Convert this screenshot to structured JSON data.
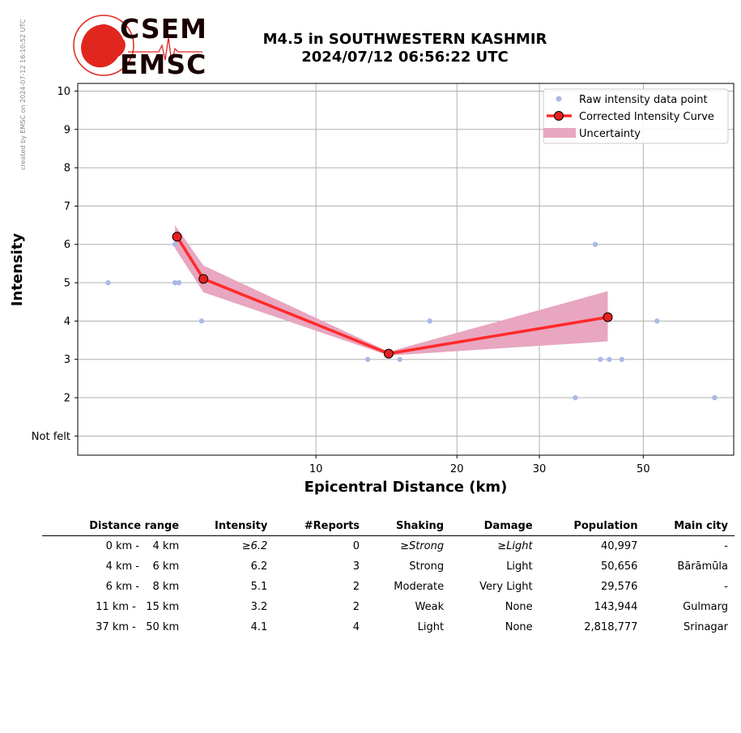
{
  "credit": "created by EMSC on 2024-07-12 16:10:52 UTC",
  "logo": {
    "top_word": "CSEM",
    "bottom_word": "EMSC"
  },
  "title": {
    "line1": "M4.5 in SOUTHWESTERN KASHMIR",
    "line2": "2024/07/12 06:56:22 UTC"
  },
  "colors": {
    "raw": "#aab9e6",
    "curve": "#ff2a2a",
    "marker": "#e62020",
    "uncertainty": "#e8a6c0",
    "grid": "#b0b0b0"
  },
  "chart_data": {
    "type": "line",
    "xlabel": "Epicentral Distance (km)",
    "ylabel": "Intensity",
    "x_scale": "log",
    "xlim": [
      3.1,
      78
    ],
    "ylim": [
      0.5,
      10.2
    ],
    "xticks": [
      10,
      20,
      30,
      50
    ],
    "yticks": [
      {
        "value": 1,
        "label": "Not felt"
      },
      {
        "value": 2,
        "label": "2"
      },
      {
        "value": 3,
        "label": "3"
      },
      {
        "value": 4,
        "label": "4"
      },
      {
        "value": 5,
        "label": "5"
      },
      {
        "value": 6,
        "label": "6"
      },
      {
        "value": 7,
        "label": "7"
      },
      {
        "value": 8,
        "label": "8"
      },
      {
        "value": 9,
        "label": "9"
      },
      {
        "value": 10,
        "label": "10"
      }
    ],
    "grid": true,
    "legend_position": "top-right",
    "legend": [
      "Raw intensity data point",
      "Corrected Intensity Curve",
      "Uncertainty"
    ],
    "raw_points": [
      {
        "x": 3.6,
        "y": 5
      },
      {
        "x": 5.0,
        "y": 6
      },
      {
        "x": 5.0,
        "y": 5
      },
      {
        "x": 5.1,
        "y": 5
      },
      {
        "x": 5.7,
        "y": 4
      },
      {
        "x": 12.9,
        "y": 3
      },
      {
        "x": 15.1,
        "y": 3
      },
      {
        "x": 17.5,
        "y": 4
      },
      {
        "x": 35.8,
        "y": 2
      },
      {
        "x": 39.5,
        "y": 6
      },
      {
        "x": 40.5,
        "y": 3
      },
      {
        "x": 42.3,
        "y": 3
      },
      {
        "x": 45.0,
        "y": 3
      },
      {
        "x": 53.5,
        "y": 4
      },
      {
        "x": 71.0,
        "y": 2
      }
    ],
    "curve": [
      {
        "x": 5.05,
        "y": 6.2
      },
      {
        "x": 5.75,
        "y": 5.1
      },
      {
        "x": 14.3,
        "y": 3.15
      },
      {
        "x": 42.0,
        "y": 4.1
      }
    ],
    "uncertainty": [
      {
        "x": 5.0,
        "low": 5.9,
        "high": 6.5
      },
      {
        "x": 5.75,
        "low": 4.75,
        "high": 5.45
      },
      {
        "x": 14.3,
        "low": 3.1,
        "high": 3.2
      },
      {
        "x": 42.0,
        "low": 3.47,
        "high": 4.78
      }
    ]
  },
  "table": {
    "headers": [
      "Distance range",
      "Intensity",
      "#Reports",
      "Shaking",
      "Damage",
      "Population",
      "Main city"
    ],
    "rows": [
      {
        "range": "0 km -    4 km",
        "intensity": "≥6.2",
        "reports": "0",
        "shaking": "≥Strong",
        "damage": "≥Light",
        "population": "40,997",
        "city": "-",
        "italic": true
      },
      {
        "range": "4 km -    6 km",
        "intensity": "6.2",
        "reports": "3",
        "shaking": "Strong",
        "damage": "Light",
        "population": "50,656",
        "city": "Bārāmūla",
        "italic": false
      },
      {
        "range": "6 km -    8 km",
        "intensity": "5.1",
        "reports": "2",
        "shaking": "Moderate",
        "damage": "Very Light",
        "population": "29,576",
        "city": "-",
        "italic": false
      },
      {
        "range": "11 km -   15 km",
        "intensity": "3.2",
        "reports": "2",
        "shaking": "Weak",
        "damage": "None",
        "population": "143,944",
        "city": "Gulmarg",
        "italic": false
      },
      {
        "range": "37 km -   50 km",
        "intensity": "4.1",
        "reports": "4",
        "shaking": "Light",
        "damage": "None",
        "population": "2,818,777",
        "city": "Srinagar",
        "italic": false
      }
    ]
  }
}
